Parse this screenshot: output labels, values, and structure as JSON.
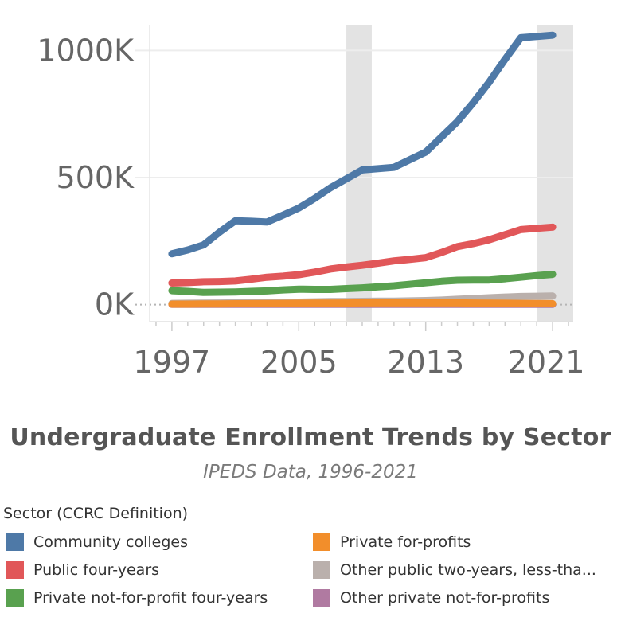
{
  "chart_data": {
    "type": "line",
    "title": "Undergraduate Enrollment Trends by Sector",
    "subtitle": "IPEDS Data, 1996-2021",
    "x_ticks": [
      "1997",
      "2005",
      "2013",
      "2021"
    ],
    "x_tick_values": [
      1997,
      2005,
      2013,
      2021
    ],
    "y_ticks": [
      "0K",
      "500K",
      "1000K"
    ],
    "y_tick_values": [
      0,
      500000,
      1000000
    ],
    "xlim": [
      1995.6,
      2022.3
    ],
    "ylim": [
      -70000,
      1120000
    ],
    "grid": true,
    "highlight_bands": [
      [
        2008.0,
        2009.6
      ],
      [
        2020.0,
        2022.3
      ]
    ],
    "legend_title": "Sector (CCRC Definition)",
    "legend_position": "bottom",
    "x": [
      1997,
      1998,
      1999,
      2000,
      2001,
      2002,
      2003,
      2004,
      2005,
      2006,
      2007,
      2008,
      2009,
      2010,
      2011,
      2012,
      2013,
      2014,
      2015,
      2016,
      2017,
      2018,
      2019,
      2020,
      2021
    ],
    "series": [
      {
        "name": "Community colleges",
        "color": "#4e79a7",
        "values": [
          200000,
          215000,
          235000,
          285000,
          330000,
          328000,
          325000,
          352000,
          380000,
          418000,
          460000,
          495000,
          530000,
          535000,
          540000,
          570000,
          600000,
          660000,
          720000,
          795000,
          875000,
          965000,
          1050000,
          1055000,
          1060000
        ]
      },
      {
        "name": "Public four-years",
        "color": "#e15759",
        "values": [
          85000,
          87000,
          90000,
          91000,
          93000,
          100000,
          108000,
          112000,
          118000,
          128000,
          140000,
          148000,
          155000,
          163000,
          172000,
          178000,
          185000,
          205000,
          228000,
          240000,
          255000,
          275000,
          295000,
          300000,
          305000
        ]
      },
      {
        "name": "Private not-for-profit four-years",
        "color": "#59a14f",
        "values": [
          55000,
          52000,
          48000,
          49000,
          50000,
          52000,
          54000,
          58000,
          61000,
          60000,
          60000,
          63000,
          66000,
          70000,
          74000,
          80000,
          86000,
          92000,
          96000,
          97000,
          97000,
          102000,
          108000,
          114000,
          119000
        ]
      },
      {
        "name": "Private for-profits",
        "color": "#f28e2b",
        "values": [
          2000,
          2000,
          2500,
          3000,
          3500,
          4000,
          4500,
          5000,
          5500,
          6000,
          6000,
          6500,
          7000,
          7000,
          7000,
          7000,
          7000,
          7000,
          7000,
          6500,
          6000,
          5500,
          5000,
          4500,
          4000
        ]
      },
      {
        "name": "Other public two-years, less-tha...",
        "color": "#bab0ac",
        "values": [
          5000,
          5500,
          6000,
          6500,
          7000,
          7500,
          8000,
          9000,
          10000,
          11000,
          12000,
          12500,
          13000,
          13500,
          14000,
          15000,
          16000,
          18000,
          21000,
          24000,
          27000,
          30000,
          32000,
          33000,
          34000
        ]
      },
      {
        "name": "Other private not-for-profits",
        "color": "#b07aa1",
        "values": [
          1000,
          1000,
          1000,
          1000,
          1000,
          1000,
          1000,
          1000,
          1000,
          1000,
          1000,
          1000,
          1000,
          1000,
          1000,
          1000,
          1000,
          1000,
          1000,
          1000,
          1000,
          1000,
          1000,
          1000,
          1000
        ]
      }
    ]
  }
}
